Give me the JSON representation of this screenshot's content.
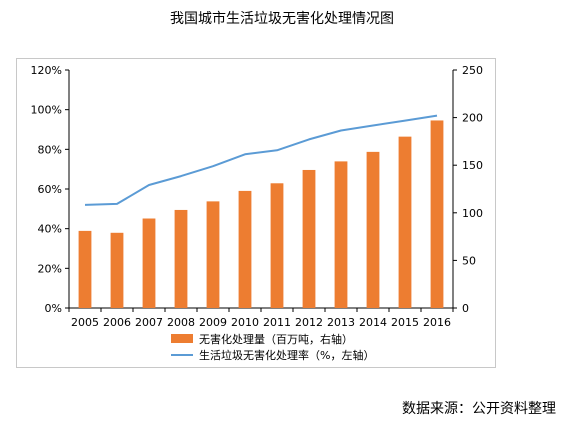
{
  "page": {
    "title": "我国城市生活垃圾无害化处理情况图",
    "source": "数据来源：公开资料整理"
  },
  "colors": {
    "bar": "#ED7D31",
    "line": "#5B9BD5",
    "axis": "#000000"
  },
  "chart_data": {
    "type": "bar+line",
    "title": "我国城市生活垃圾无害化处理情况图",
    "categories": [
      "2005",
      "2006",
      "2007",
      "2008",
      "2009",
      "2010",
      "2011",
      "2012",
      "2013",
      "2014",
      "2015",
      "2016"
    ],
    "series": [
      {
        "name": "无害化处理量（百万吨，右轴）",
        "type": "bar",
        "axis": "right",
        "values": [
          81,
          79,
          94,
          103,
          112,
          123,
          131,
          145,
          154,
          164,
          180,
          197
        ]
      },
      {
        "name": "生活垃圾无害化处理率（%，左轴）",
        "type": "line",
        "axis": "left",
        "values": [
          52,
          52.5,
          62,
          66.5,
          71.5,
          77.5,
          79.5,
          85,
          89.5,
          92,
          94.5,
          97
        ]
      }
    ],
    "left_axis": {
      "ylim": [
        0,
        120
      ],
      "ticks": [
        "0%",
        "20%",
        "40%",
        "60%",
        "80%",
        "100%",
        "120%"
      ]
    },
    "right_axis": {
      "ylim": [
        0,
        250
      ],
      "ticks": [
        "0",
        "50",
        "100",
        "150",
        "200",
        "250"
      ]
    },
    "legend_placement": "bottom",
    "grid": false
  }
}
